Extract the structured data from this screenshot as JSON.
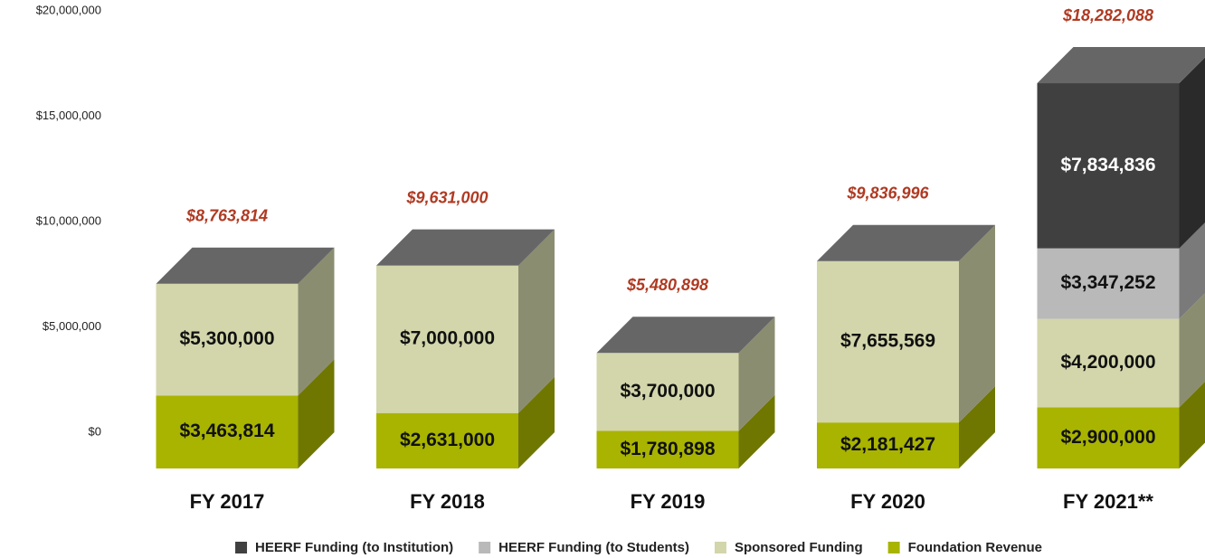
{
  "chart_data": {
    "type": "bar3d-stacked",
    "categories": [
      "FY 2017",
      "FY 2018",
      "FY 2019",
      "FY 2020",
      "FY 2021**"
    ],
    "series": [
      {
        "name": "Foundation Revenue",
        "color": "#a8b400",
        "values": [
          3463814,
          2631000,
          1780898,
          2181427,
          2900000
        ],
        "value_labels": [
          "$3,463,814",
          "$2,631,000",
          "$1,780,898",
          "$2,181,427",
          "$2,900,000"
        ]
      },
      {
        "name": "Sponsored Funding",
        "color": "#d3d6ab",
        "values": [
          5300000,
          7000000,
          3700000,
          7655569,
          4200000
        ],
        "value_labels": [
          "$5,300,000",
          "$7,000,000",
          "$3,700,000",
          "$7,655,569",
          "$4,200,000"
        ]
      },
      {
        "name": "HEERF Funding (to Students)",
        "color": "#b9b9b9",
        "values": [
          null,
          null,
          null,
          null,
          3347252
        ],
        "value_labels": [
          null,
          null,
          null,
          null,
          "$3,347,252"
        ]
      },
      {
        "name": "HEERF Funding (to Institution)",
        "color": "#404040",
        "values": [
          null,
          null,
          null,
          null,
          7834836
        ],
        "value_labels": [
          null,
          null,
          null,
          null,
          "$7,834,836"
        ]
      }
    ],
    "totals": {
      "values": [
        8763814,
        9631000,
        5480898,
        9836996,
        18282088
      ],
      "value_labels": [
        "$8,763,814",
        "$9,631,000",
        "$5,480,898",
        "$9,836,996",
        "$18,282,088"
      ]
    },
    "ylim": [
      0,
      20000000
    ],
    "yticks": [
      {
        "value": 0,
        "label": "$0"
      },
      {
        "value": 5000000,
        "label": "$5,000,000"
      },
      {
        "value": 10000000,
        "label": "$10,000,000"
      },
      {
        "value": 15000000,
        "label": "$15,000,000"
      },
      {
        "value": 20000000,
        "label": "$20,000,000"
      }
    ],
    "legend": "bottom"
  }
}
